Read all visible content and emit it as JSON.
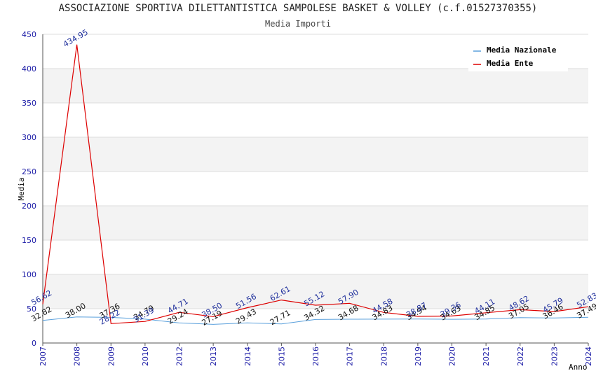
{
  "chart_data": {
    "type": "line",
    "title": "ASSOCIAZIONE SPORTIVA DILETTANTISTICA SAMPOLESE BASKET & VOLLEY (c.f.01527370355)",
    "subtitle": "Media Importi",
    "xlabel": "Anno",
    "ylabel": "Media",
    "ylim": [
      0,
      450
    ],
    "yticks": [
      "0",
      "50",
      "100",
      "150",
      "200",
      "250",
      "300",
      "350",
      "400",
      "450"
    ],
    "categories": [
      "2007",
      "2008",
      "2009",
      "2010",
      "2012",
      "2013",
      "2014",
      "2015",
      "2016",
      "2017",
      "2018",
      "2019",
      "2020",
      "2021",
      "2022",
      "2023",
      "2024"
    ],
    "legend_position": "top-right",
    "series": [
      {
        "name": "Media Nazionale",
        "color": "#5aa0dc",
        "values": [
          32.82,
          38.0,
          37.36,
          34.79,
          29.24,
          27.19,
          29.43,
          27.71,
          34.32,
          34.68,
          34.83,
          34.94,
          34.63,
          34.85,
          37.05,
          36.46,
          37.49
        ],
        "labels": [
          "32.82",
          "38.00",
          "37.36",
          "34.79",
          "29.24",
          "27.19",
          "29.43",
          "27.71",
          "34.32",
          "34.68",
          "34.83",
          "34.94",
          "34.63",
          "34.85",
          "37.05",
          "36.46",
          "37.49"
        ]
      },
      {
        "name": "Media Ente",
        "color": "#dd0000",
        "values": [
          56.62,
          434.95,
          28.22,
          31.39,
          44.71,
          38.5,
          51.56,
          62.61,
          55.12,
          57.9,
          44.58,
          38.87,
          39.36,
          44.11,
          48.62,
          45.79,
          52.83
        ],
        "labels": [
          "56.62",
          "434.95",
          "28.22",
          "31.39",
          "44.71",
          "38.50",
          "51.56",
          "62.61",
          "55.12",
          "57.90",
          "44.58",
          "38.87",
          "39.36",
          "44.11",
          "48.62",
          "45.79",
          "52.83"
        ]
      }
    ]
  }
}
